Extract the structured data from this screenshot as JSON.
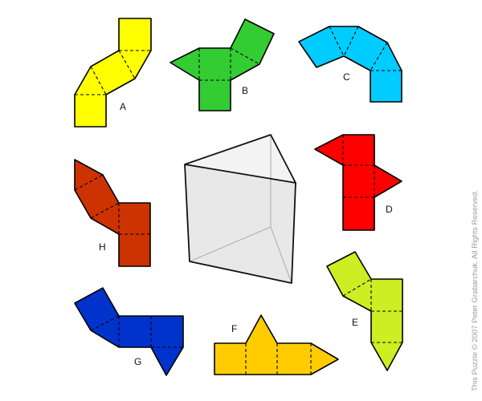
{
  "pieces": [
    {
      "id": "A",
      "color": "#ffff00"
    },
    {
      "id": "B",
      "color": "#33cc33"
    },
    {
      "id": "C",
      "color": "#00ccff"
    },
    {
      "id": "D",
      "color": "#ff0000"
    },
    {
      "id": "E",
      "color": "#ccee22"
    },
    {
      "id": "F",
      "color": "#ffcc00"
    },
    {
      "id": "G",
      "color": "#0033cc"
    },
    {
      "id": "H",
      "color": "#cc3300"
    }
  ],
  "prism_color": "#e6e6e6",
  "credit": "This Puzzle © 2007 Peter Grabarchuk. All Rights Reserved."
}
